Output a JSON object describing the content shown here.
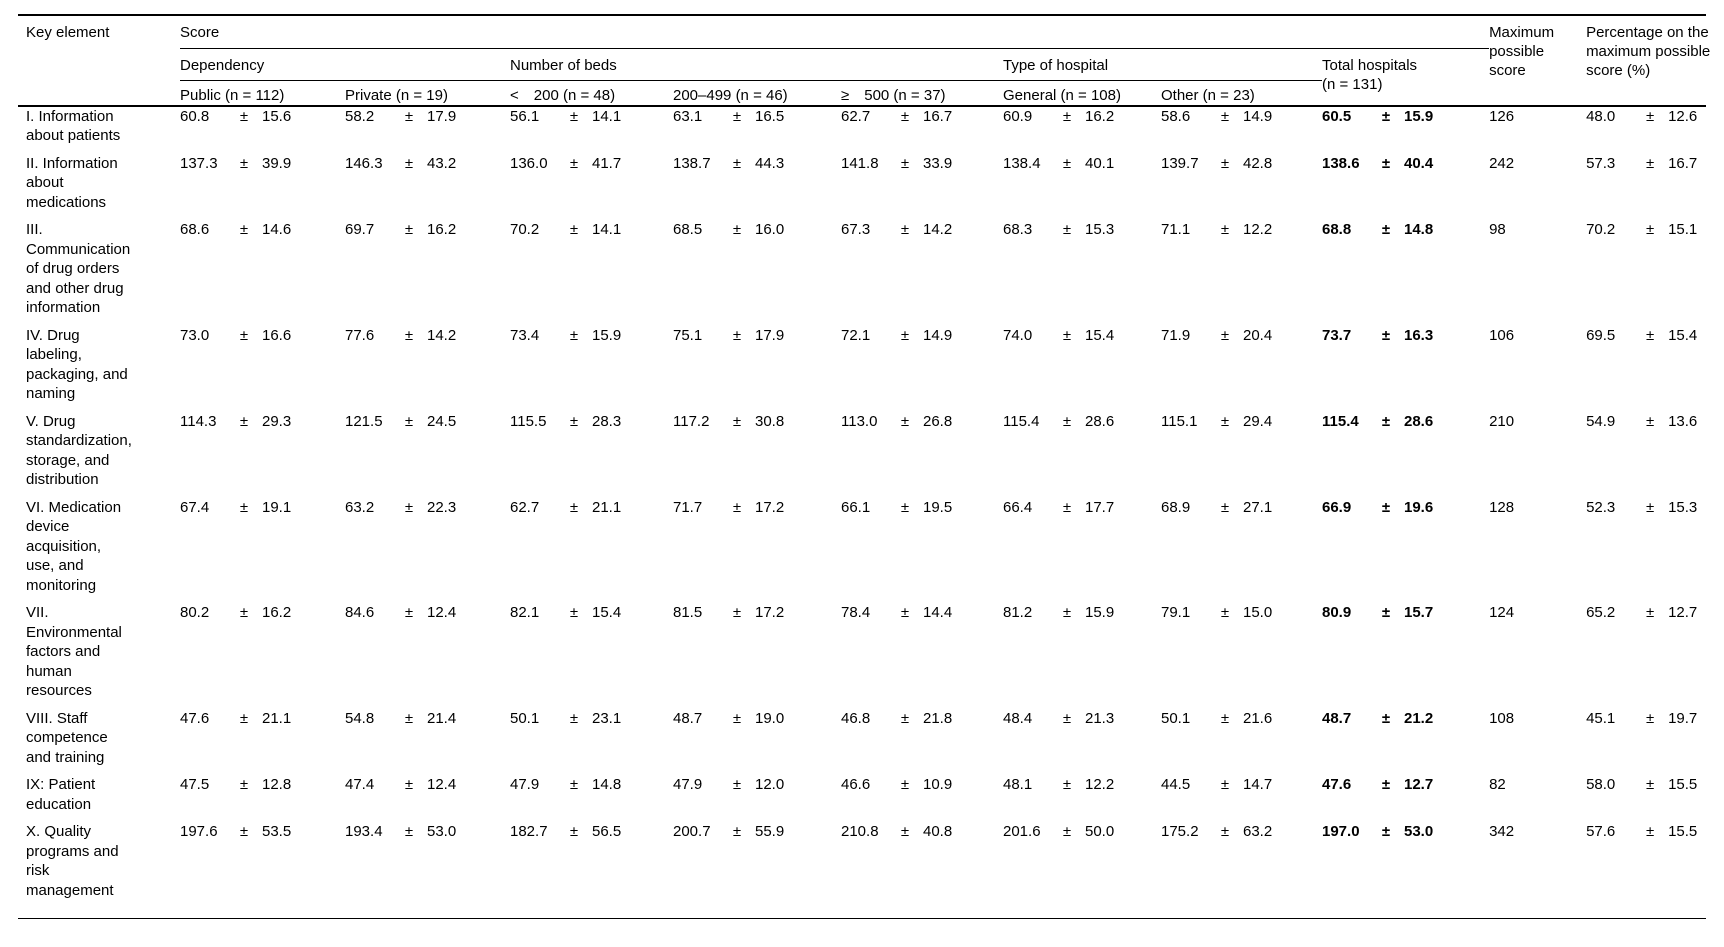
{
  "table": {
    "key_header": "Key element",
    "score_header": "Score",
    "plus_minus": "±",
    "groups": [
      {
        "label": "Dependency"
      },
      {
        "label": "Number of beds"
      },
      {
        "label": "Type of hospital"
      }
    ],
    "subheaders": [
      "Public (n = 112)",
      "Private (n = 19)",
      "<  200 (n = 48)",
      "200–499 (n = 46)",
      "≥  500 (n = 37)",
      "General (n = 108)",
      "Other (n = 23)"
    ],
    "total_header": "Total hospitals (n = 131)",
    "max_header": "Maximum possible score",
    "pct_header": "Percentage on the maximum possible score (%)",
    "rows": [
      {
        "label": "I. Information about patients",
        "scores": [
          [
            "60.8",
            "15.6"
          ],
          [
            "58.2",
            "17.9"
          ],
          [
            "56.1",
            "14.1"
          ],
          [
            "63.1",
            "16.5"
          ],
          [
            "62.7",
            "16.7"
          ],
          [
            "60.9",
            "16.2"
          ],
          [
            "58.6",
            "14.9"
          ]
        ],
        "total": [
          "60.5",
          "15.9"
        ],
        "max": "126",
        "pct": [
          "48.0",
          "12.6"
        ]
      },
      {
        "label": "II. Information about medications",
        "scores": [
          [
            "137.3",
            "39.9"
          ],
          [
            "146.3",
            "43.2"
          ],
          [
            "136.0",
            "41.7"
          ],
          [
            "138.7",
            "44.3"
          ],
          [
            "141.8",
            "33.9"
          ],
          [
            "138.4",
            "40.1"
          ],
          [
            "139.7",
            "42.8"
          ]
        ],
        "total": [
          "138.6",
          "40.4"
        ],
        "max": "242",
        "pct": [
          "57.3",
          "16.7"
        ]
      },
      {
        "label": "III. Communication of drug orders and other drug information",
        "scores": [
          [
            "68.6",
            "14.6"
          ],
          [
            "69.7",
            "16.2"
          ],
          [
            "70.2",
            "14.1"
          ],
          [
            "68.5",
            "16.0"
          ],
          [
            "67.3",
            "14.2"
          ],
          [
            "68.3",
            "15.3"
          ],
          [
            "71.1",
            "12.2"
          ]
        ],
        "total": [
          "68.8",
          "14.8"
        ],
        "max": "98",
        "pct": [
          "70.2",
          "15.1"
        ]
      },
      {
        "label": "IV. Drug labeling, packaging, and naming",
        "scores": [
          [
            "73.0",
            "16.6"
          ],
          [
            "77.6",
            "14.2"
          ],
          [
            "73.4",
            "15.9"
          ],
          [
            "75.1",
            "17.9"
          ],
          [
            "72.1",
            "14.9"
          ],
          [
            "74.0",
            "15.4"
          ],
          [
            "71.9",
            "20.4"
          ]
        ],
        "total": [
          "73.7",
          "16.3"
        ],
        "max": "106",
        "pct": [
          "69.5",
          "15.4"
        ]
      },
      {
        "label": "V. Drug standardization, storage, and distribution",
        "scores": [
          [
            "114.3",
            "29.3"
          ],
          [
            "121.5",
            "24.5"
          ],
          [
            "115.5",
            "28.3"
          ],
          [
            "117.2",
            "30.8"
          ],
          [
            "113.0",
            "26.8"
          ],
          [
            "115.4",
            "28.6"
          ],
          [
            "115.1",
            "29.4"
          ]
        ],
        "total": [
          "115.4",
          "28.6"
        ],
        "max": "210",
        "pct": [
          "54.9",
          "13.6"
        ]
      },
      {
        "label": "VI. Medication device acquisition, use, and monitoring",
        "scores": [
          [
            "67.4",
            "19.1"
          ],
          [
            "63.2",
            "22.3"
          ],
          [
            "62.7",
            "21.1"
          ],
          [
            "71.7",
            "17.2"
          ],
          [
            "66.1",
            "19.5"
          ],
          [
            "66.4",
            "17.7"
          ],
          [
            "68.9",
            "27.1"
          ]
        ],
        "total": [
          "66.9",
          "19.6"
        ],
        "max": "128",
        "pct": [
          "52.3",
          "15.3"
        ]
      },
      {
        "label": "VII. Environmental factors and human resources",
        "scores": [
          [
            "80.2",
            "16.2"
          ],
          [
            "84.6",
            "12.4"
          ],
          [
            "82.1",
            "15.4"
          ],
          [
            "81.5",
            "17.2"
          ],
          [
            "78.4",
            "14.4"
          ],
          [
            "81.2",
            "15.9"
          ],
          [
            "79.1",
            "15.0"
          ]
        ],
        "total": [
          "80.9",
          "15.7"
        ],
        "max": "124",
        "pct": [
          "65.2",
          "12.7"
        ]
      },
      {
        "label": "VIII. Staff competence and training",
        "scores": [
          [
            "47.6",
            "21.1"
          ],
          [
            "54.8",
            "21.4"
          ],
          [
            "50.1",
            "23.1"
          ],
          [
            "48.7",
            "19.0"
          ],
          [
            "46.8",
            "21.8"
          ],
          [
            "48.4",
            "21.3"
          ],
          [
            "50.1",
            "21.6"
          ]
        ],
        "total": [
          "48.7",
          "21.2"
        ],
        "max": "108",
        "pct": [
          "45.1",
          "19.7"
        ]
      },
      {
        "label": "IX: Patient education",
        "scores": [
          [
            "47.5",
            "12.8"
          ],
          [
            "47.4",
            "12.4"
          ],
          [
            "47.9",
            "14.8"
          ],
          [
            "47.9",
            "12.0"
          ],
          [
            "46.6",
            "10.9"
          ],
          [
            "48.1",
            "12.2"
          ],
          [
            "44.5",
            "14.7"
          ]
        ],
        "total": [
          "47.6",
          "12.7"
        ],
        "max": "82",
        "pct": [
          "58.0",
          "15.5"
        ]
      },
      {
        "label": "X. Quality programs and risk management",
        "scores": [
          [
            "197.6",
            "53.5"
          ],
          [
            "193.4",
            "53.0"
          ],
          [
            "182.7",
            "56.5"
          ],
          [
            "200.7",
            "55.9"
          ],
          [
            "210.8",
            "40.8"
          ],
          [
            "201.6",
            "50.0"
          ],
          [
            "175.2",
            "63.2"
          ]
        ],
        "total": [
          "197.0",
          "53.0"
        ],
        "max": "342",
        "pct": [
          "57.6",
          "15.5"
        ]
      }
    ]
  }
}
